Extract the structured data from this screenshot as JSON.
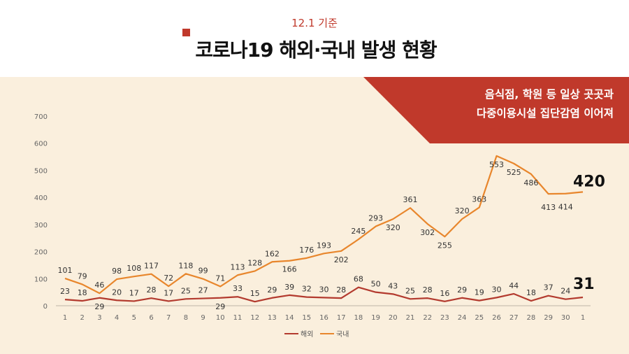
{
  "header": {
    "date": "12.1 기준",
    "title": "코로나19 해외·국내 발생 현황"
  },
  "banner": {
    "line1": "음식점, 학원 등 일상 곳곳과",
    "line2": "다중이용시설 집단감염 이어져"
  },
  "colors": {
    "overseas": "#b33a2e",
    "domestic": "#e8862c",
    "banner": "#c0392b",
    "background": "#faefdd"
  },
  "chart_data": {
    "type": "line",
    "categories": [
      "1",
      "2",
      "3",
      "4",
      "5",
      "6",
      "7",
      "8",
      "9",
      "10",
      "11",
      "12",
      "13",
      "14",
      "15",
      "16",
      "17",
      "18",
      "19",
      "20",
      "21",
      "22",
      "23",
      "24",
      "25",
      "26",
      "27",
      "28",
      "29",
      "30",
      "1"
    ],
    "series": [
      {
        "name": "해외",
        "values": [
          23,
          18,
          29,
          20,
          17,
          28,
          17,
          25,
          27,
          29,
          33,
          15,
          29,
          39,
          32,
          30,
          28,
          68,
          50,
          43,
          25,
          28,
          16,
          29,
          19,
          30,
          44,
          18,
          37,
          24,
          31
        ]
      },
      {
        "name": "국내",
        "values": [
          101,
          79,
          46,
          98,
          108,
          117,
          72,
          118,
          99,
          71,
          113,
          128,
          162,
          166,
          176,
          193,
          202,
          245,
          293,
          320,
          361,
          302,
          255,
          320,
          363,
          553,
          525,
          486,
          413,
          414,
          420
        ]
      }
    ],
    "ylim": [
      0,
      700
    ],
    "yticks": [
      0,
      100,
      200,
      300,
      400,
      500,
      600,
      700
    ],
    "grid": false,
    "legend": "bottom"
  }
}
